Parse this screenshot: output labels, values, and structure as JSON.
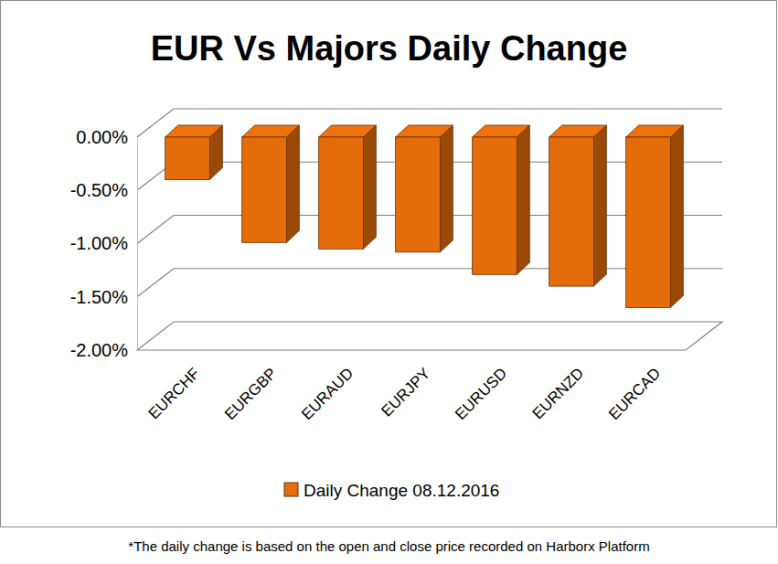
{
  "chart_data": {
    "type": "bar",
    "title": "EUR Vs Majors Daily Change",
    "categories": [
      "EURCHF",
      "EURGBP",
      "EURAUD",
      "EURJPY",
      "EURUSD",
      "EURNZD",
      "EURCAD"
    ],
    "series": [
      {
        "name": "Daily Change 08.12.2016",
        "color": "#e46c0a",
        "values": [
          -0.4,
          -0.99,
          -1.05,
          -1.08,
          -1.29,
          -1.4,
          -1.6
        ]
      }
    ],
    "ylim": [
      -2,
      0
    ],
    "yticks": [
      {
        "value": 0,
        "label": "0.00%"
      },
      {
        "value": -0.5,
        "label": "-0.50%"
      },
      {
        "value": -1,
        "label": "-1.00%"
      },
      {
        "value": -1.5,
        "label": "-1.50%"
      },
      {
        "value": -2,
        "label": "-2.00%"
      }
    ],
    "grid": true,
    "legend": "bottom",
    "annotations": [
      "*The daily change is based on the open and close price recorded on Harborx Platform"
    ]
  }
}
